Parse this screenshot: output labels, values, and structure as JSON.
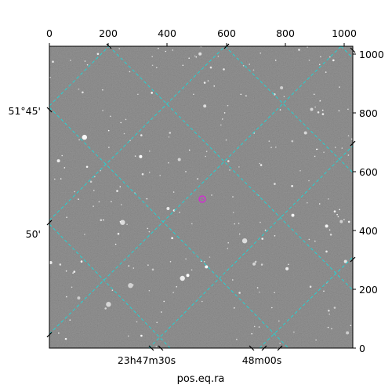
{
  "figure": {
    "xlabel": "pos.eq.ra",
    "grid_color": "#22d3d3",
    "marker_color": "#d030d0",
    "pixel_x_axis": {
      "range": [
        0,
        1030
      ],
      "ticks": [
        "0",
        "200",
        "400",
        "600",
        "800",
        "1000"
      ]
    },
    "pixel_y_axis": {
      "range": [
        0,
        1025
      ],
      "ticks": [
        "0",
        "200",
        "400",
        "600",
        "800",
        "1000"
      ]
    },
    "ra_ticks": [
      "23h47m30s",
      "48m00s"
    ],
    "dec_ticks": [
      "51°45'",
      "50'"
    ]
  }
}
